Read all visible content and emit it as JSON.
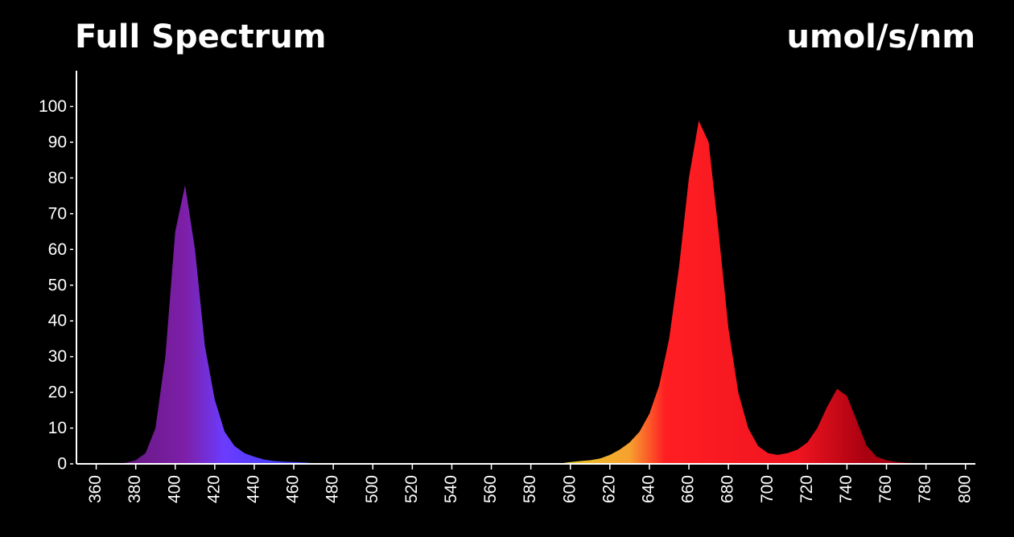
{
  "chart_data": {
    "type": "area",
    "title": "Full Spectrum",
    "y_label": "umol/s/nm",
    "x": [
      350,
      355,
      360,
      365,
      370,
      375,
      380,
      385,
      390,
      395,
      400,
      405,
      410,
      415,
      420,
      425,
      430,
      435,
      440,
      445,
      450,
      455,
      460,
      465,
      470,
      475,
      480,
      485,
      490,
      495,
      500,
      505,
      510,
      515,
      520,
      525,
      530,
      535,
      540,
      545,
      550,
      555,
      560,
      565,
      570,
      575,
      580,
      585,
      590,
      595,
      600,
      605,
      610,
      615,
      620,
      625,
      630,
      635,
      640,
      645,
      650,
      655,
      660,
      665,
      670,
      675,
      680,
      685,
      690,
      695,
      700,
      705,
      710,
      715,
      720,
      725,
      730,
      735,
      740,
      745,
      750,
      755,
      760,
      765,
      770,
      775,
      780,
      785,
      790,
      795,
      800
    ],
    "values": [
      0,
      0,
      0,
      0,
      0.1,
      0.3,
      1,
      3,
      10,
      30,
      65,
      78,
      60,
      33,
      18,
      9,
      5,
      3,
      2,
      1.2,
      0.8,
      0.6,
      0.5,
      0.4,
      0.2,
      0.1,
      0.1,
      0.1,
      0.1,
      0.1,
      0.1,
      0.1,
      0.1,
      0.1,
      0.1,
      0.1,
      0.1,
      0.1,
      0.1,
      0.1,
      0.1,
      0.1,
      0.1,
      0.1,
      0.1,
      0.1,
      0.1,
      0.1,
      0.1,
      0.1,
      0.5,
      0.8,
      1,
      1.5,
      2.5,
      4,
      6,
      9,
      14,
      22,
      35,
      55,
      80,
      96,
      90,
      65,
      38,
      20,
      10,
      5,
      3,
      2.5,
      3,
      4,
      6,
      10,
      16,
      21,
      19,
      12,
      5,
      2,
      1,
      0.5,
      0.3,
      0.2,
      0.1,
      0,
      0,
      0,
      0
    ],
    "gradient": [
      {
        "x": 380,
        "color": "#6a1a8a"
      },
      {
        "x": 405,
        "color": "#7d1fa8"
      },
      {
        "x": 425,
        "color": "#6b3cff"
      },
      {
        "x": 480,
        "color": "#2040ff"
      },
      {
        "x": 530,
        "color": "#30c040"
      },
      {
        "x": 590,
        "color": "#e0d020"
      },
      {
        "x": 630,
        "color": "#f7a030"
      },
      {
        "x": 648,
        "color": "#ff1e22"
      },
      {
        "x": 715,
        "color": "#f01420"
      },
      {
        "x": 750,
        "color": "#a80010"
      }
    ],
    "xlim": [
      350,
      805
    ],
    "ylim": [
      0,
      110
    ],
    "xticks": [
      360,
      380,
      400,
      420,
      440,
      460,
      480,
      500,
      520,
      540,
      560,
      580,
      600,
      620,
      640,
      660,
      680,
      700,
      720,
      740,
      760,
      780,
      800
    ],
    "yticks": [
      0,
      10,
      20,
      30,
      40,
      50,
      60,
      70,
      80,
      90,
      100
    ],
    "axis_color": "#ffffff",
    "background": "#000000"
  }
}
